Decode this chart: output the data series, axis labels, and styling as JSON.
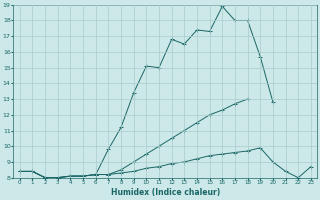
{
  "xlabel": "Humidex (Indice chaleur)",
  "background_color": "#cce8e8",
  "line_color": "#1a6666",
  "grid_color": "#aacccc",
  "x_values": [
    0,
    1,
    2,
    3,
    4,
    5,
    6,
    7,
    8,
    9,
    10,
    11,
    12,
    13,
    14,
    15,
    16,
    17,
    18,
    19,
    20,
    21,
    22,
    23
  ],
  "line1": [
    8.4,
    8.4,
    8.0,
    8.0,
    8.1,
    8.1,
    8.2,
    9.8,
    11.2,
    13.4,
    15.1,
    15.0,
    16.8,
    16.5,
    17.4,
    17.3,
    18.9,
    18.0,
    18.0,
    15.7,
    12.8,
    null,
    null,
    null
  ],
  "line2": [
    8.4,
    8.4,
    8.0,
    8.0,
    8.1,
    8.1,
    8.2,
    8.2,
    8.5,
    9.0,
    9.5,
    10.0,
    10.5,
    11.0,
    11.5,
    12.0,
    12.3,
    12.7,
    13.0,
    null,
    null,
    null,
    null,
    null
  ],
  "line3": [
    8.4,
    8.4,
    8.0,
    8.0,
    8.1,
    8.1,
    8.2,
    8.2,
    8.3,
    8.4,
    8.6,
    8.7,
    8.9,
    9.0,
    9.2,
    9.4,
    9.5,
    9.6,
    9.7,
    9.9,
    9.0,
    8.4,
    8.0,
    8.7
  ],
  "ylim": [
    8,
    19
  ],
  "xlim": [
    -0.5,
    23.5
  ],
  "yticks": [
    8,
    9,
    10,
    11,
    12,
    13,
    14,
    15,
    16,
    17,
    18,
    19
  ],
  "xticks": [
    0,
    1,
    2,
    3,
    4,
    5,
    6,
    7,
    8,
    9,
    10,
    11,
    12,
    13,
    14,
    15,
    16,
    17,
    18,
    19,
    20,
    21,
    22,
    23
  ]
}
